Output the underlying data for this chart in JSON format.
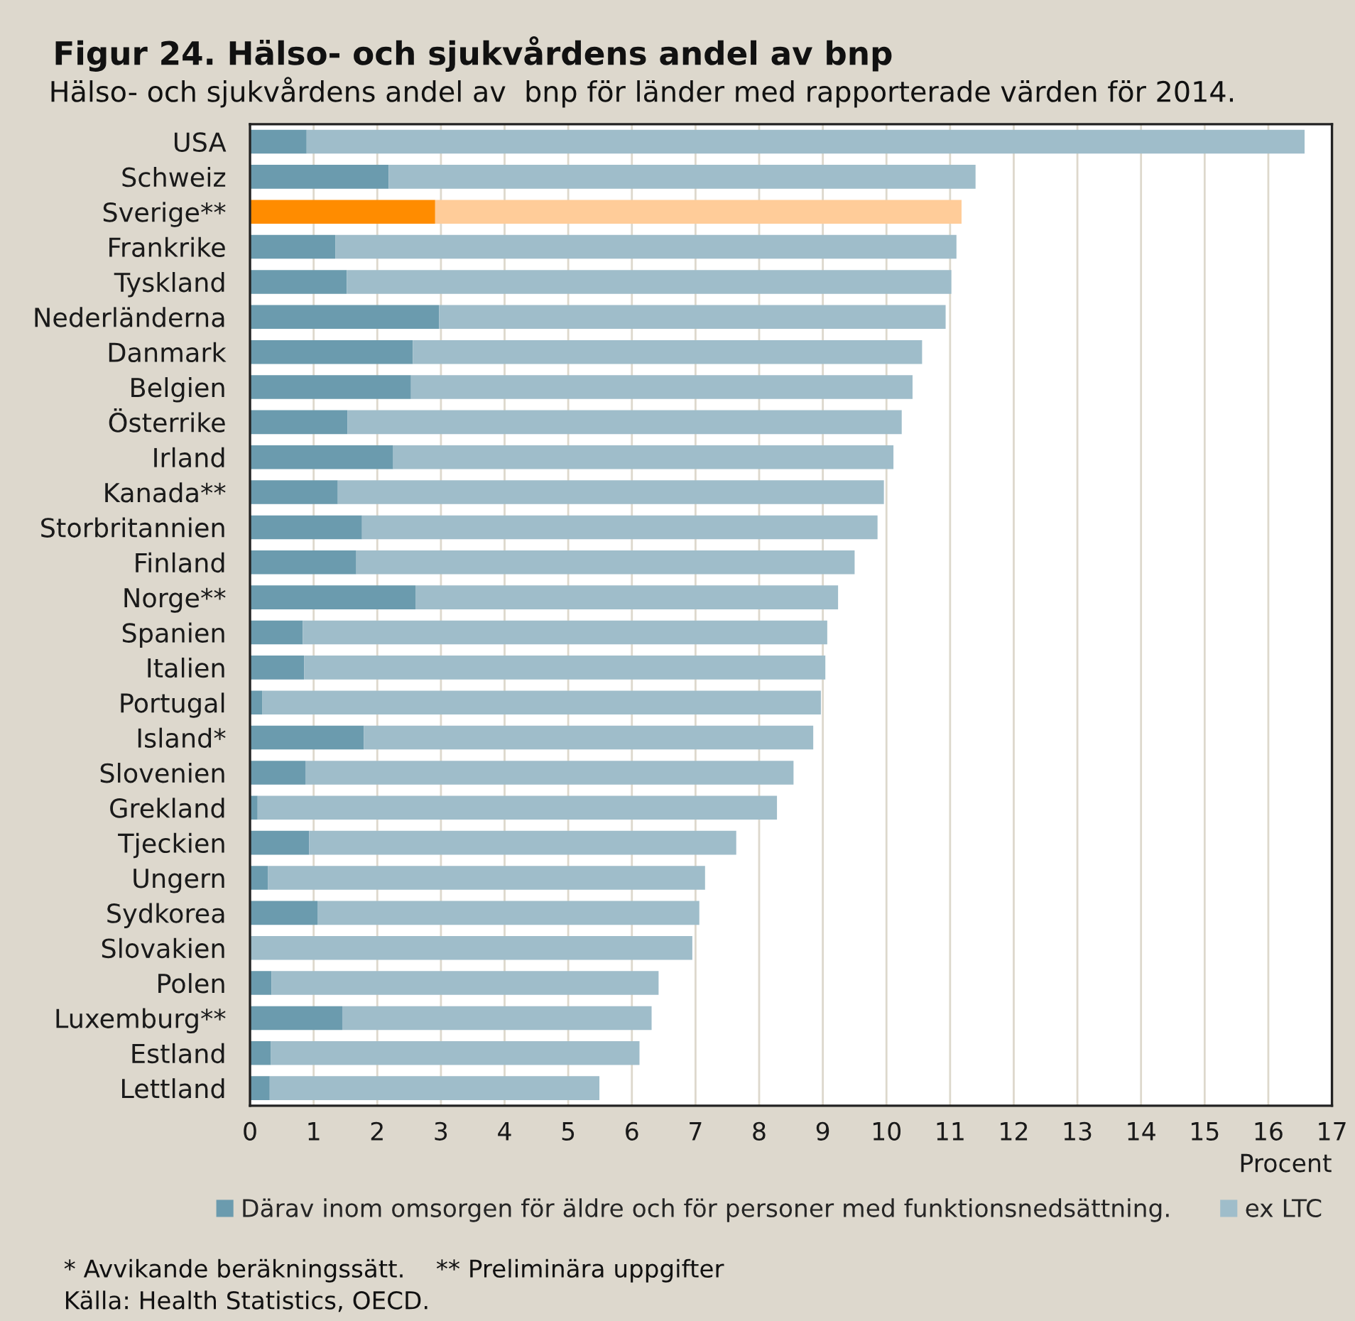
{
  "chart_data": {
    "type": "bar",
    "orientation": "horizontal",
    "stacked": true,
    "title": "Figur 24. Hälso- och sjukvårdens andel av bnp",
    "subtitle": "Hälso- och sjukvårdens andel av  bnp för länder med rapporterade värden för 2014.",
    "xlabel": "Procent",
    "categories": [
      "USA",
      "Schweiz",
      "Sverige**",
      "Frankrike",
      "Tyskland",
      "Nederländerna",
      "Danmark",
      "Belgien",
      "Österrike",
      "Irland",
      "Kanada**",
      "Storbritannien",
      "Finland",
      "Norge**",
      "Spanien",
      "Italien",
      "Portugal",
      "Island*",
      "Slovenien",
      "Grekland",
      "Tjeckien",
      "Ungern",
      "Sydkorea",
      "Slovakien",
      "Polen",
      "Luxemburg**",
      "Estland",
      "Lettland"
    ],
    "series": [
      {
        "name": "Därav inom omsorgen för äldre och för personer med funktionsnedsättning.",
        "color": "#6b9bae",
        "colors": [
          "#6b9bae",
          "#6b9bae",
          "#ff8c00",
          "#6b9bae",
          "#6b9bae",
          "#6b9bae",
          "#6b9bae",
          "#6b9bae",
          "#6b9bae",
          "#6b9bae",
          "#6b9bae",
          "#6b9bae",
          "#6b9bae",
          "#6b9bae",
          "#6b9bae",
          "#6b9bae",
          "#6b9bae",
          "#6b9bae",
          "#6b9bae",
          "#6b9bae",
          "#6b9bae",
          "#6b9bae",
          "#6b9bae",
          "#6b9bae",
          "#6b9bae",
          "#6b9bae",
          "#6b9bae",
          "#6b9bae"
        ],
        "values": [
          0.89,
          2.18,
          2.91,
          1.34,
          1.52,
          2.97,
          2.56,
          2.53,
          1.53,
          2.25,
          1.38,
          1.76,
          1.67,
          2.6,
          0.83,
          0.85,
          0.19,
          1.79,
          0.87,
          0.12,
          0.93,
          0.28,
          1.06,
          null,
          0.34,
          1.45,
          0.33,
          0.31
        ]
      },
      {
        "name": "ex LTC",
        "color": "#9fbdca",
        "colors": [
          "#9fbdca",
          "#9fbdca",
          "#ffcc99",
          "#9fbdca",
          "#9fbdca",
          "#9fbdca",
          "#9fbdca",
          "#9fbdca",
          "#9fbdca",
          "#9fbdca",
          "#9fbdca",
          "#9fbdca",
          "#9fbdca",
          "#9fbdca",
          "#9fbdca",
          "#9fbdca",
          "#9fbdca",
          "#9fbdca",
          "#9fbdca",
          "#9fbdca",
          "#9fbdca",
          "#9fbdca",
          "#9fbdca",
          "#9fbdca",
          "#9fbdca",
          "#9fbdca",
          "#9fbdca",
          "#9fbdca"
        ],
        "values": [
          15.68,
          9.22,
          8.27,
          9.76,
          9.5,
          7.96,
          8.0,
          7.88,
          8.71,
          7.86,
          8.58,
          8.1,
          7.83,
          6.64,
          8.24,
          8.19,
          8.78,
          7.06,
          7.67,
          8.16,
          6.71,
          6.87,
          6.0,
          6.95,
          6.08,
          4.86,
          5.79,
          5.18
        ]
      }
    ],
    "xlim": [
      0,
      17
    ],
    "xticks": [
      0,
      1,
      2,
      3,
      4,
      5,
      6,
      7,
      8,
      9,
      10,
      11,
      12,
      13,
      14,
      15,
      16,
      17
    ],
    "grid": "x",
    "legend": "bottom",
    "annotations": [
      "* Avvikande beräkningssätt.    ** Preliminära uppgifter",
      "Källa: Health Statistics, OECD."
    ]
  }
}
